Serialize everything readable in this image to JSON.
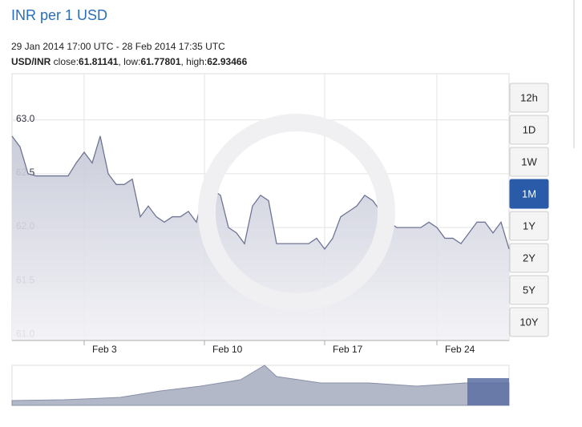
{
  "chart_data": {
    "type": "area",
    "title": "INR per 1 USD",
    "subtitle": "29 Jan 2014 17:00 UTC - 28 Feb 2014 17:35 UTC",
    "pair": "USD/INR",
    "stats": [
      {
        "label": " close:",
        "value": 61.81141
      },
      {
        "label": ", low:",
        "value": 61.77801
      },
      {
        "label": ", high:",
        "value": 62.93466
      }
    ],
    "range_buttons": [
      "12h",
      "1D",
      "1W",
      "1M",
      "1Y",
      "2Y",
      "5Y",
      "10Y"
    ],
    "active_button": 3,
    "categories": [
      null,
      null,
      null,
      null,
      null,
      null,
      null,
      null,
      null,
      "Feb 3",
      null,
      null,
      null,
      null,
      null,
      null,
      null,
      null,
      null,
      null,
      null,
      null,
      null,
      null,
      "Feb 10",
      null,
      null,
      null,
      null,
      null,
      null,
      null,
      null,
      null,
      null,
      null,
      null,
      null,
      null,
      "Feb 17",
      null,
      null,
      null,
      null,
      null,
      null,
      null,
      null,
      null,
      null,
      null,
      null,
      null,
      "Feb 24",
      null,
      null,
      null,
      null,
      null,
      null,
      null,
      null,
      null
    ],
    "values": [
      62.85,
      62.75,
      62.5,
      62.48,
      62.48,
      62.48,
      62.48,
      62.48,
      62.6,
      62.7,
      62.6,
      62.85,
      62.5,
      62.4,
      62.4,
      62.45,
      62.1,
      62.2,
      62.1,
      62.05,
      62.1,
      62.1,
      62.15,
      62.05,
      62.35,
      62.35,
      62.3,
      62.0,
      61.95,
      61.85,
      62.2,
      62.3,
      62.25,
      61.85,
      61.85,
      61.85,
      61.85,
      61.85,
      61.9,
      61.8,
      61.9,
      62.1,
      62.15,
      62.2,
      62.3,
      62.25,
      62.15,
      62.05,
      62.0,
      62.0,
      62.0,
      62.0,
      62.05,
      62.0,
      61.9,
      61.9,
      61.85,
      61.95,
      62.05,
      62.05,
      61.95,
      62.05,
      61.8
    ],
    "color": "#6e7594",
    "ylim": [
      60.95,
      63.43
    ],
    "yticks": [
      {
        "value": 61.0,
        "label": "61.0"
      },
      {
        "value": 61.5,
        "label": "61.5"
      },
      {
        "value": 62.0,
        "label": "62.0"
      },
      {
        "value": 62.5,
        "label": "62.5"
      },
      {
        "value": 63.0,
        "label": "63.0"
      }
    ],
    "grid": true
  }
}
